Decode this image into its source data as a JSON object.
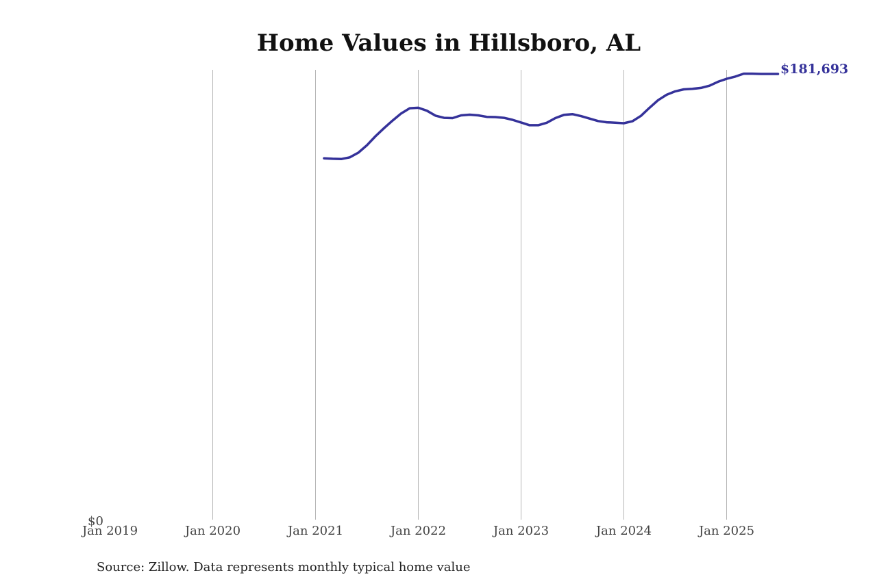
{
  "chart_data": {
    "type": "line",
    "title": "Home Values in Hillsboro, AL",
    "xlabel": "",
    "ylabel": "",
    "x_tick_labels": [
      "Jan 2019",
      "Jan 2020",
      "Jan 2021",
      "Jan 2022",
      "Jan 2023",
      "Jan 2024",
      "Jan 2025"
    ],
    "y_tick_labels": [
      "$0"
    ],
    "ylim": [
      0,
      181693
    ],
    "xlim": [
      "2019-01",
      "2025-08"
    ],
    "grid": "vertical",
    "end_label": "$181,693",
    "source": "Source: Zillow. Data represents monthly typical home value",
    "series": [
      {
        "color": "#35329a",
        "points": [
          [
            "2021-02",
            147300
          ],
          [
            "2021-03",
            147100
          ],
          [
            "2021-04",
            147000
          ],
          [
            "2021-05",
            147700
          ],
          [
            "2021-06",
            149600
          ],
          [
            "2021-07",
            152600
          ],
          [
            "2021-08",
            156300
          ],
          [
            "2021-09",
            159600
          ],
          [
            "2021-10",
            162700
          ],
          [
            "2021-11",
            165600
          ],
          [
            "2021-12",
            167700
          ],
          [
            "2022-01",
            167900
          ],
          [
            "2022-02",
            166700
          ],
          [
            "2022-03",
            164700
          ],
          [
            "2022-04",
            163800
          ],
          [
            "2022-05",
            163700
          ],
          [
            "2022-06",
            164800
          ],
          [
            "2022-07",
            165100
          ],
          [
            "2022-08",
            164800
          ],
          [
            "2022-09",
            164200
          ],
          [
            "2022-10",
            164100
          ],
          [
            "2022-11",
            163800
          ],
          [
            "2022-12",
            163000
          ],
          [
            "2023-01",
            161900
          ],
          [
            "2023-02",
            160800
          ],
          [
            "2023-03",
            160800
          ],
          [
            "2023-04",
            161800
          ],
          [
            "2023-05",
            163700
          ],
          [
            "2023-06",
            165000
          ],
          [
            "2023-07",
            165300
          ],
          [
            "2023-08",
            164500
          ],
          [
            "2023-09",
            163500
          ],
          [
            "2023-10",
            162500
          ],
          [
            "2023-11",
            162000
          ],
          [
            "2023-12",
            161800
          ],
          [
            "2024-01",
            161600
          ],
          [
            "2024-02",
            162400
          ],
          [
            "2024-03",
            164600
          ],
          [
            "2024-04",
            167900
          ],
          [
            "2024-05",
            171000
          ],
          [
            "2024-06",
            173200
          ],
          [
            "2024-07",
            174600
          ],
          [
            "2024-08",
            175400
          ],
          [
            "2024-09",
            175600
          ],
          [
            "2024-10",
            176000
          ],
          [
            "2024-11",
            176900
          ],
          [
            "2024-12",
            178500
          ],
          [
            "2025-01",
            179700
          ],
          [
            "2025-02",
            180600
          ],
          [
            "2025-03",
            181800
          ],
          [
            "2025-04",
            181800
          ],
          [
            "2025-05",
            181700
          ],
          [
            "2025-06",
            181700
          ],
          [
            "2025-07",
            181693
          ]
        ]
      }
    ]
  }
}
